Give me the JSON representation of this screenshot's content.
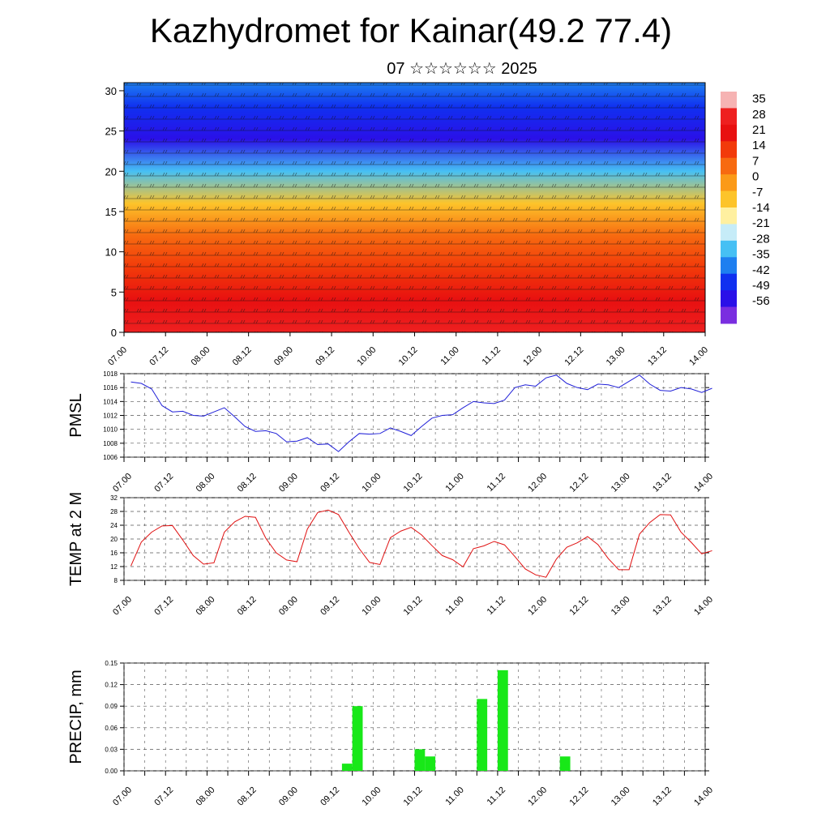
{
  "title": "Kazhydromet for Kainar(49.2 77.4)",
  "subtitle": "07 ☆☆☆☆☆☆ 2025",
  "time_labels": [
    "07.00",
    "07.12",
    "08.00",
    "08.12",
    "09.00",
    "09.12",
    "10.00",
    "10.12",
    "11.00",
    "11.12",
    "12.00",
    "12.12",
    "13.00",
    "13.12",
    "14.00"
  ],
  "chart_data": [
    {
      "type": "heatmap",
      "title": "",
      "ylabel": "",
      "ylim": [
        0,
        31
      ],
      "y_ticks": [
        0,
        5,
        10,
        15,
        20,
        25,
        30
      ],
      "x_range_hours": [
        0,
        168
      ],
      "colorbar": {
        "labels": [
          "35",
          "28",
          "21",
          "14",
          "7",
          "0",
          "-7",
          "-14",
          "-21",
          "-28",
          "-35",
          "-42",
          "-49",
          "-56"
        ],
        "colors": [
          "#f6b3b3",
          "#ee2020",
          "#e81010",
          "#f23a0a",
          "#f76a10",
          "#fb9a18",
          "#fdc42a",
          "#fff0a0",
          "#c6ecf8",
          "#46c0f4",
          "#1e7ff0",
          "#1030f0",
          "#2a10e8",
          "#7a2ee0"
        ]
      },
      "temperature_profile": {
        "levels": [
          0,
          4,
          8,
          12,
          16,
          20,
          24,
          28,
          31
        ],
        "values": [
          30,
          24,
          17,
          6,
          -7,
          -28,
          -52,
          -44,
          -38
        ]
      }
    },
    {
      "type": "line",
      "ylabel": "PMSL",
      "ylim": [
        1006,
        1018
      ],
      "y_ticks": [
        1006,
        1008,
        1010,
        1012,
        1014,
        1016,
        1018
      ],
      "color": "#2020d8",
      "x_hours": [
        0,
        3,
        6,
        9,
        12,
        15,
        18,
        21,
        24,
        27,
        30,
        33,
        36,
        39,
        42,
        45,
        48,
        51,
        54,
        57,
        60,
        63,
        66,
        69,
        72,
        75,
        78,
        81,
        84,
        87,
        90,
        93,
        96,
        99,
        102,
        105,
        108,
        111,
        114,
        117,
        120,
        123,
        126,
        129,
        132,
        135,
        138,
        141,
        144,
        147,
        150,
        153,
        156,
        159,
        162,
        165,
        168
      ],
      "values": [
        1016.8,
        1016.6,
        1015.8,
        1013.4,
        1012.5,
        1012.6,
        1012.0,
        1011.9,
        1012.5,
        1013.1,
        1011.8,
        1010.4,
        1009.7,
        1009.8,
        1009.4,
        1008.2,
        1008.3,
        1008.8,
        1007.8,
        1007.9,
        1006.8,
        1008.2,
        1009.4,
        1009.3,
        1009.4,
        1010.2,
        1009.7,
        1009.1,
        1010.4,
        1011.6,
        1012.0,
        1012.1,
        1013.1,
        1014.0,
        1013.8,
        1013.7,
        1014.2,
        1016.0,
        1016.4,
        1016.2,
        1017.4,
        1017.8,
        1016.6,
        1016.0,
        1015.7,
        1016.5,
        1016.4,
        1016.0,
        1016.9,
        1017.8,
        1016.5,
        1015.6,
        1015.5,
        1016.0,
        1015.8,
        1015.3,
        1015.9
      ]
    },
    {
      "type": "line",
      "ylabel": "TEMP at 2 M",
      "ylim": [
        8,
        32
      ],
      "y_ticks": [
        8,
        12,
        16,
        20,
        24,
        28,
        32
      ],
      "color": "#e01010",
      "x_hours": [
        0,
        3,
        6,
        9,
        12,
        15,
        18,
        21,
        24,
        27,
        30,
        33,
        36,
        39,
        42,
        45,
        48,
        51,
        54,
        57,
        60,
        63,
        66,
        69,
        72,
        75,
        78,
        81,
        84,
        87,
        90,
        93,
        96,
        99,
        102,
        105,
        108,
        111,
        114,
        117,
        120,
        123,
        126,
        129,
        132,
        135,
        138,
        141,
        144,
        147,
        150,
        153,
        156,
        159,
        162,
        165,
        168
      ],
      "values": [
        12.2,
        19.1,
        22.0,
        23.8,
        23.9,
        19.7,
        15.2,
        12.7,
        13.1,
        22.0,
        25.0,
        26.6,
        26.3,
        20.2,
        16.0,
        13.9,
        13.4,
        22.9,
        27.7,
        28.4,
        27.1,
        22.0,
        17.2,
        13.2,
        12.6,
        20.4,
        22.3,
        23.4,
        21.2,
        18.1,
        15.2,
        14.0,
        11.9,
        17.2,
        18.0,
        19.3,
        18.3,
        14.9,
        11.3,
        9.6,
        8.9,
        14.2,
        17.6,
        18.9,
        20.7,
        18.4,
        14.3,
        11.1,
        11.1,
        21.4,
        24.8,
        27.1,
        27.0,
        22.0,
        19.0,
        15.7,
        16.6
      ]
    },
    {
      "type": "bar",
      "ylabel": "PRECIP, mm",
      "ylim": [
        0,
        0.15
      ],
      "y_ticks": [
        "0.00",
        "0.03",
        "0.06",
        "0.09",
        "0.12",
        "0.15"
      ],
      "color": "#18e818",
      "bar_width_hours": 3,
      "x_hours": [
        63,
        66,
        84,
        87,
        102,
        108,
        126
      ],
      "values": [
        0.01,
        0.09,
        0.03,
        0.02,
        0.1,
        0.14,
        0.02
      ]
    }
  ]
}
